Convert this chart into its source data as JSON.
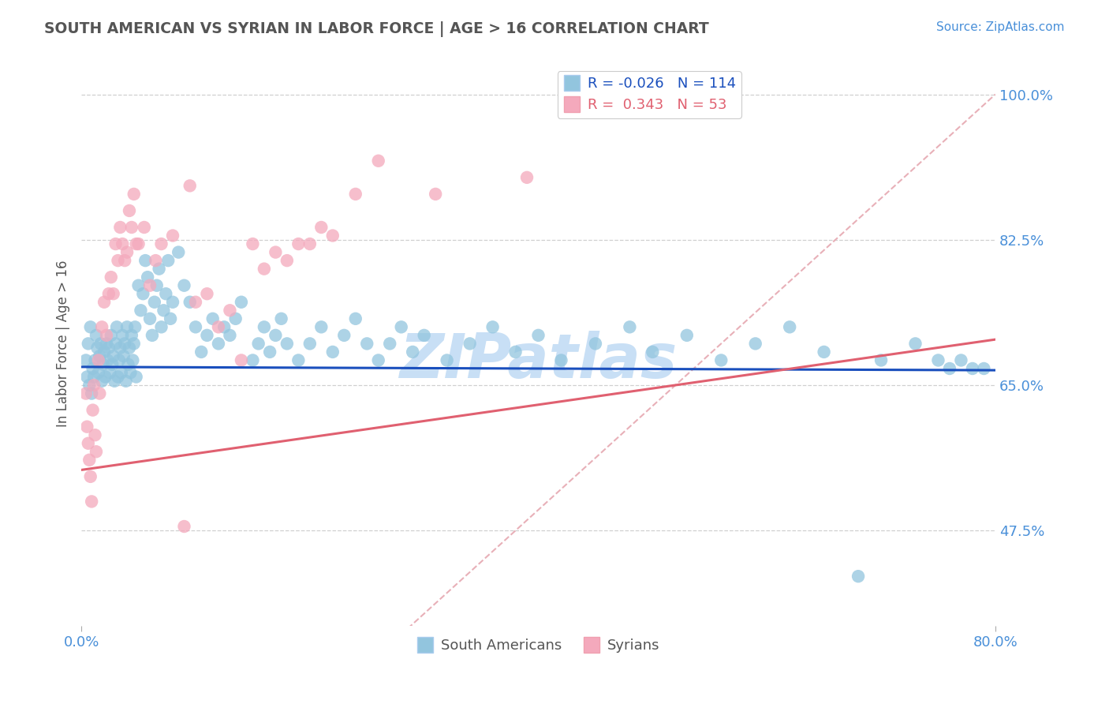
{
  "title": "SOUTH AMERICAN VS SYRIAN IN LABOR FORCE | AGE > 16 CORRELATION CHART",
  "source_text": "Source: ZipAtlas.com",
  "ylabel": "In Labor Force | Age > 16",
  "x_min": 0.0,
  "x_max": 0.8,
  "y_min": 0.36,
  "y_max": 1.04,
  "y_ticks": [
    0.475,
    0.65,
    0.825,
    1.0
  ],
  "y_tick_labels": [
    "47.5%",
    "65.0%",
    "82.5%",
    "100.0%"
  ],
  "x_tick_labels": [
    "0.0%",
    "80.0%"
  ],
  "legend_r_blue": "-0.026",
  "legend_n_blue": "114",
  "legend_r_pink": "0.343",
  "legend_n_pink": "53",
  "blue_color": "#92c5de",
  "pink_color": "#f4a9bc",
  "trend_blue_color": "#1a4fbd",
  "trend_pink_color": "#e06070",
  "diag_line_color": "#e8b0b8",
  "title_color": "#555555",
  "axis_label_color": "#4a90d9",
  "watermark_color": "#c8dff5",
  "blue_trend_start_y": 0.672,
  "blue_trend_end_y": 0.668,
  "pink_trend_start_y": 0.548,
  "pink_trend_end_y": 0.705,
  "blue_dots": {
    "x": [
      0.004,
      0.005,
      0.006,
      0.007,
      0.008,
      0.009,
      0.01,
      0.011,
      0.012,
      0.013,
      0.014,
      0.015,
      0.016,
      0.017,
      0.018,
      0.019,
      0.02,
      0.021,
      0.022,
      0.023,
      0.024,
      0.025,
      0.026,
      0.027,
      0.028,
      0.029,
      0.03,
      0.031,
      0.032,
      0.033,
      0.034,
      0.035,
      0.036,
      0.037,
      0.038,
      0.039,
      0.04,
      0.041,
      0.042,
      0.043,
      0.044,
      0.045,
      0.046,
      0.047,
      0.048,
      0.05,
      0.052,
      0.054,
      0.056,
      0.058,
      0.06,
      0.062,
      0.064,
      0.066,
      0.068,
      0.07,
      0.072,
      0.074,
      0.076,
      0.078,
      0.08,
      0.085,
      0.09,
      0.095,
      0.1,
      0.105,
      0.11,
      0.115,
      0.12,
      0.125,
      0.13,
      0.135,
      0.14,
      0.15,
      0.155,
      0.16,
      0.165,
      0.17,
      0.175,
      0.18,
      0.19,
      0.2,
      0.21,
      0.22,
      0.23,
      0.24,
      0.25,
      0.26,
      0.27,
      0.28,
      0.29,
      0.3,
      0.32,
      0.34,
      0.36,
      0.38,
      0.4,
      0.42,
      0.45,
      0.48,
      0.5,
      0.53,
      0.56,
      0.59,
      0.62,
      0.65,
      0.68,
      0.7,
      0.73,
      0.75,
      0.76,
      0.77,
      0.78,
      0.79
    ],
    "y": [
      0.68,
      0.66,
      0.7,
      0.65,
      0.72,
      0.64,
      0.67,
      0.66,
      0.68,
      0.71,
      0.695,
      0.665,
      0.685,
      0.7,
      0.655,
      0.675,
      0.69,
      0.66,
      0.7,
      0.68,
      0.695,
      0.665,
      0.71,
      0.675,
      0.685,
      0.655,
      0.7,
      0.72,
      0.66,
      0.68,
      0.695,
      0.665,
      0.71,
      0.685,
      0.7,
      0.655,
      0.72,
      0.675,
      0.695,
      0.665,
      0.71,
      0.68,
      0.7,
      0.72,
      0.66,
      0.77,
      0.74,
      0.76,
      0.8,
      0.78,
      0.73,
      0.71,
      0.75,
      0.77,
      0.79,
      0.72,
      0.74,
      0.76,
      0.8,
      0.73,
      0.75,
      0.81,
      0.77,
      0.75,
      0.72,
      0.69,
      0.71,
      0.73,
      0.7,
      0.72,
      0.71,
      0.73,
      0.75,
      0.68,
      0.7,
      0.72,
      0.69,
      0.71,
      0.73,
      0.7,
      0.68,
      0.7,
      0.72,
      0.69,
      0.71,
      0.73,
      0.7,
      0.68,
      0.7,
      0.72,
      0.69,
      0.71,
      0.68,
      0.7,
      0.72,
      0.69,
      0.71,
      0.68,
      0.7,
      0.72,
      0.69,
      0.71,
      0.68,
      0.7,
      0.72,
      0.69,
      0.42,
      0.68,
      0.7,
      0.68,
      0.67,
      0.68,
      0.67,
      0.67
    ]
  },
  "pink_dots": {
    "x": [
      0.004,
      0.005,
      0.006,
      0.007,
      0.008,
      0.009,
      0.01,
      0.011,
      0.012,
      0.013,
      0.015,
      0.016,
      0.018,
      0.02,
      0.022,
      0.024,
      0.026,
      0.028,
      0.03,
      0.032,
      0.034,
      0.036,
      0.038,
      0.04,
      0.042,
      0.044,
      0.046,
      0.048,
      0.05,
      0.055,
      0.06,
      0.065,
      0.07,
      0.08,
      0.09,
      0.1,
      0.11,
      0.12,
      0.13,
      0.14,
      0.15,
      0.16,
      0.17,
      0.18,
      0.19,
      0.2,
      0.21,
      0.22,
      0.24,
      0.26,
      0.31,
      0.39,
      0.095
    ],
    "y": [
      0.64,
      0.6,
      0.58,
      0.56,
      0.54,
      0.51,
      0.62,
      0.65,
      0.59,
      0.57,
      0.68,
      0.64,
      0.72,
      0.75,
      0.71,
      0.76,
      0.78,
      0.76,
      0.82,
      0.8,
      0.84,
      0.82,
      0.8,
      0.81,
      0.86,
      0.84,
      0.88,
      0.82,
      0.82,
      0.84,
      0.77,
      0.8,
      0.82,
      0.83,
      0.48,
      0.75,
      0.76,
      0.72,
      0.74,
      0.68,
      0.82,
      0.79,
      0.81,
      0.8,
      0.82,
      0.82,
      0.84,
      0.83,
      0.88,
      0.92,
      0.88,
      0.9,
      0.89
    ]
  }
}
